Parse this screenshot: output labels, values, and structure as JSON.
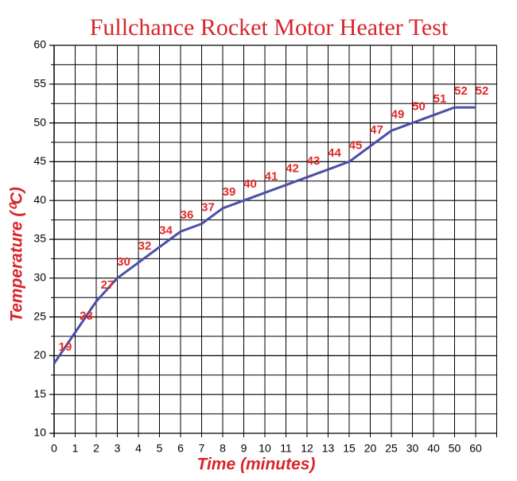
{
  "chart_data": {
    "type": "line",
    "title": "Fullchance Rocket Motor Heater Test",
    "x_label": "Time (minutes)",
    "y_label": "Temperature (⁰C)",
    "categories": [
      "0",
      "1",
      "2",
      "3",
      "4",
      "5",
      "6",
      "7",
      "8",
      "9",
      "10",
      "11",
      "12",
      "13",
      "15",
      "20",
      "25",
      "30",
      "40",
      "50",
      "60"
    ],
    "series": [
      {
        "name": "Temperature",
        "color": "#4b4fa6",
        "values": [
          19,
          23,
          27,
          30,
          32,
          34,
          36,
          37,
          39,
          40,
          41,
          42,
          43,
          44,
          45,
          47,
          49,
          50,
          51,
          52,
          52
        ]
      }
    ],
    "data_label_color": "#e02a2a",
    "ylim": [
      10,
      60
    ],
    "yticks": [
      10,
      15,
      20,
      25,
      30,
      35,
      40,
      45,
      50,
      55,
      60
    ],
    "yticks_minor": [
      12.5,
      17.5,
      22.5,
      27.5,
      32.5,
      37.5,
      42.5,
      47.5,
      52.5,
      57.5
    ],
    "grid": true
  }
}
